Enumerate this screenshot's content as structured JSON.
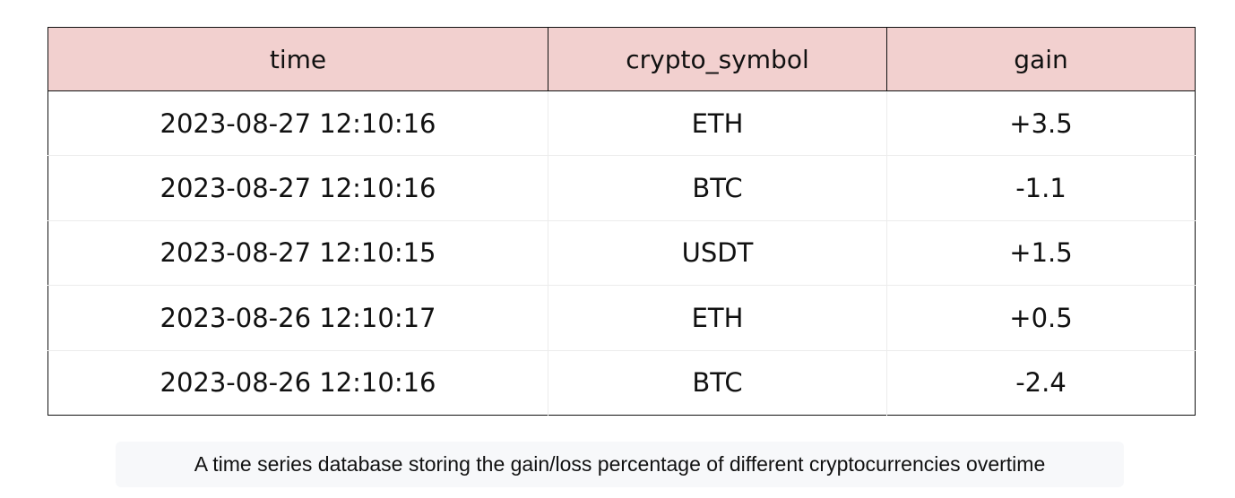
{
  "table": {
    "headers": [
      "time",
      "crypto_symbol",
      "gain"
    ],
    "rows": [
      [
        "2023-08-27 12:10:16",
        "ETH",
        "+3.5"
      ],
      [
        "2023-08-27 12:10:16",
        "BTC",
        "-1.1"
      ],
      [
        "2023-08-27 12:10:15",
        "USDT",
        "+1.5"
      ],
      [
        "2023-08-26 12:10:17",
        "ETH",
        "+0.5"
      ],
      [
        "2023-08-26 12:10:16",
        "BTC",
        "-2.4"
      ]
    ]
  },
  "caption": "A time series database storing the gain/loss percentage of different cryptocurrencies overtime",
  "colors": {
    "header_background": "#f2d0cf",
    "border": "#111111",
    "caption_background": "#f7f8fa"
  }
}
